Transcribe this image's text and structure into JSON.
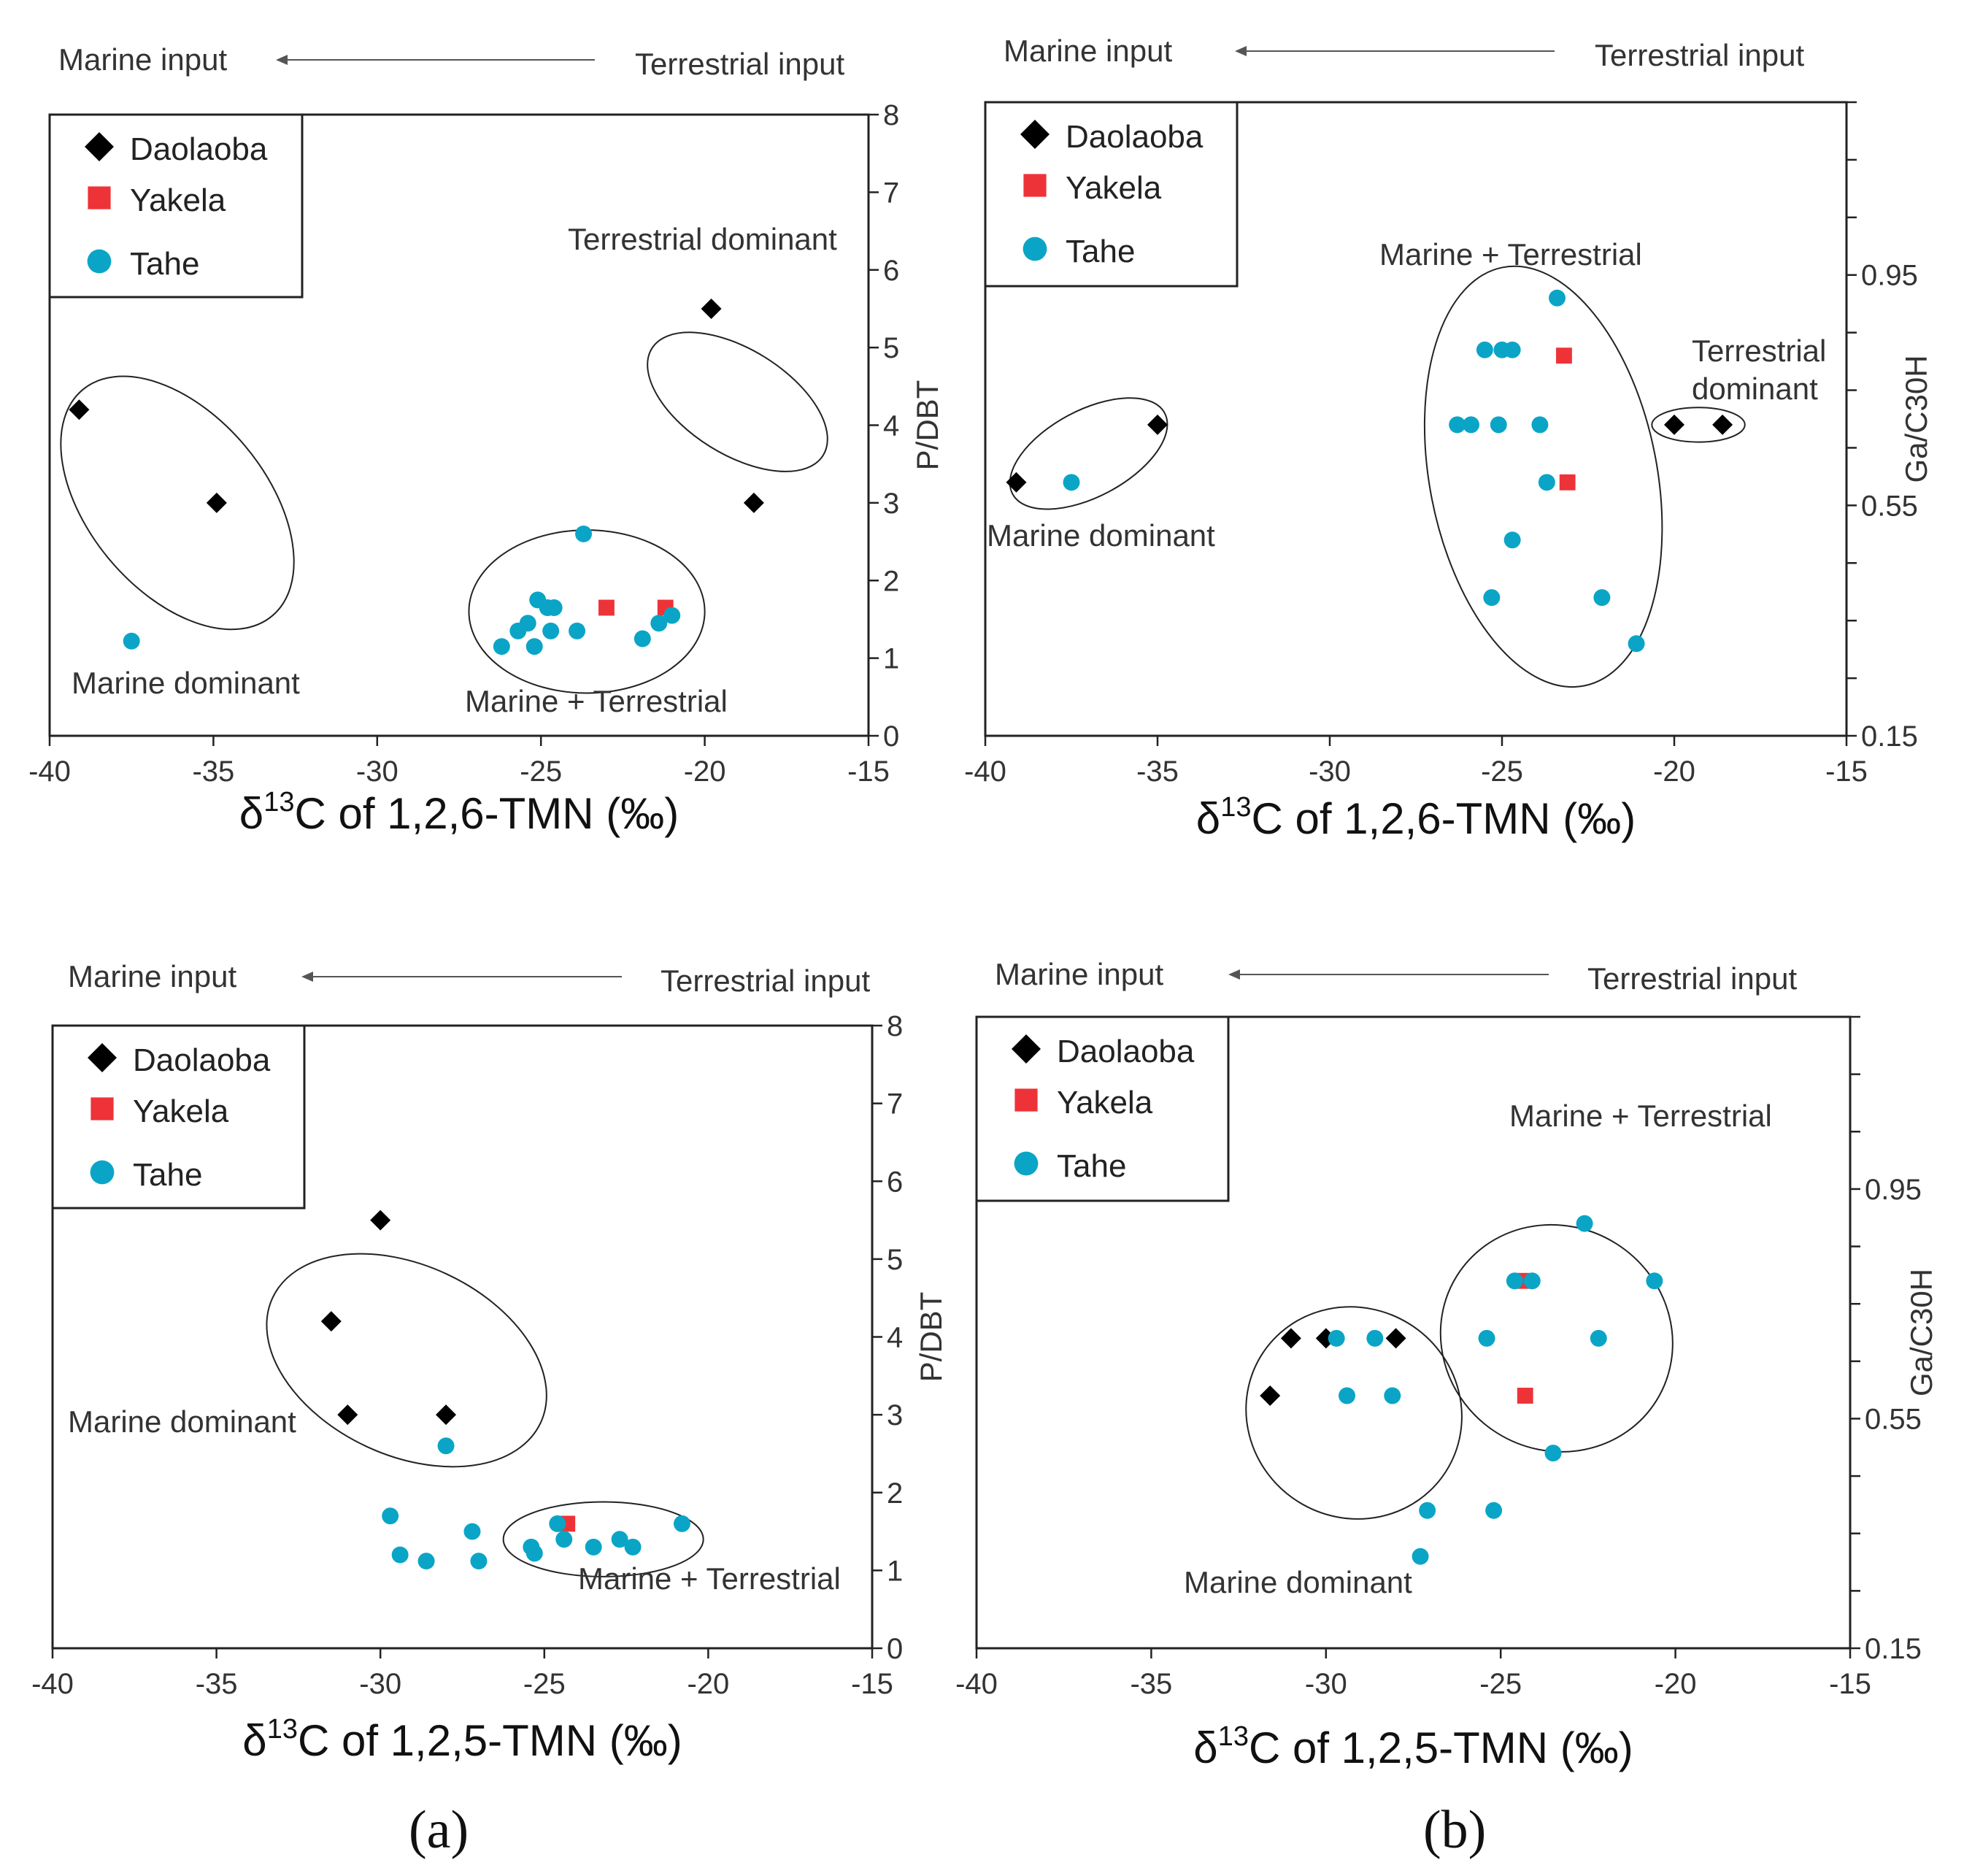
{
  "colors": {
    "daolaoba": "#000000",
    "yakela": "#ee3338",
    "tahe": "#0aa5c6",
    "axis": "#222222",
    "text": "#333333"
  },
  "captions": {
    "a": "(a)",
    "b": "(b)"
  },
  "chart_data": [
    {
      "id": "a-top",
      "type": "scatter",
      "xlabel": "δ13C of 1,2,6-TMN (‰)",
      "ylabel": "P/DBT",
      "xlim": [
        -40,
        -15
      ],
      "ylim": [
        0,
        8
      ],
      "xticks": [
        -40,
        -35,
        -30,
        -25,
        -20,
        -15
      ],
      "yticks": [
        0,
        1,
        2,
        3,
        4,
        5,
        6,
        7,
        8
      ],
      "ytick_labels": [
        "0",
        "1",
        "2",
        "3",
        "4",
        "5",
        "6",
        "7",
        "8"
      ],
      "arrow": {
        "left": "Marine input",
        "right": "Terrestrial input"
      },
      "legend": [
        "Daolaoba",
        "Yakela",
        "Tahe"
      ],
      "series": [
        {
          "name": "Daolaoba",
          "marker": "diamond",
          "points": [
            [
              -39.1,
              4.2
            ],
            [
              -34.9,
              3.0
            ],
            [
              -19.8,
              5.5
            ],
            [
              -18.5,
              3.0
            ]
          ]
        },
        {
          "name": "Yakela",
          "marker": "square",
          "points": [
            [
              -23.0,
              1.65
            ],
            [
              -21.2,
              1.65
            ]
          ]
        },
        {
          "name": "Tahe",
          "marker": "circle",
          "points": [
            [
              -37.5,
              1.22
            ],
            [
              -23.7,
              2.6
            ],
            [
              -26.2,
              1.15
            ],
            [
              -25.7,
              1.35
            ],
            [
              -25.4,
              1.45
            ],
            [
              -25.1,
              1.75
            ],
            [
              -24.8,
              1.65
            ],
            [
              -24.6,
              1.65
            ],
            [
              -25.2,
              1.15
            ],
            [
              -24.7,
              1.35
            ],
            [
              -23.9,
              1.35
            ],
            [
              -21.9,
              1.25
            ],
            [
              -21.4,
              1.45
            ],
            [
              -21.0,
              1.55
            ]
          ]
        }
      ],
      "groups": [
        {
          "label": "Marine dominant",
          "cx": -36.1,
          "cy": 3.0,
          "rx": 2.7,
          "ry": 1.9,
          "angle": -40
        },
        {
          "label": "Terrestrial dominant",
          "cx": -19.0,
          "cy": 4.3,
          "rx": 1.6,
          "ry": 1.3,
          "angle": -58
        },
        {
          "label": "Marine + Terrestrial",
          "cx": -23.6,
          "cy": 1.6,
          "rx": 3.6,
          "ry": 1.05,
          "angle": 0
        }
      ]
    },
    {
      "id": "b-top",
      "type": "scatter",
      "xlabel": "δ13C of 1,2,6-TMN (‰)",
      "ylabel": "Ga/C30H",
      "xlim": [
        -40,
        -15
      ],
      "ylim": [
        0.15,
        1.25
      ],
      "xticks": [
        -40,
        -35,
        -30,
        -25,
        -20,
        -15
      ],
      "yticks": [
        0.15,
        0.25,
        0.35,
        0.45,
        0.55,
        0.65,
        0.75,
        0.85,
        0.95,
        1.05,
        1.15,
        1.25
      ],
      "ytick_labels": [
        "0.15",
        "",
        "",
        "",
        "0.55",
        "",
        "",
        "",
        "0.95",
        "",
        "",
        ""
      ],
      "arrow": {
        "left": "Marine input",
        "right": "Terrestrial input"
      },
      "legend": [
        "Daolaoba",
        "Yakela",
        "Tahe"
      ],
      "series": [
        {
          "name": "Daolaoba",
          "marker": "diamond",
          "points": [
            [
              -39.1,
              0.59
            ],
            [
              -35.0,
              0.69
            ],
            [
              -20.0,
              0.69
            ],
            [
              -18.6,
              0.69
            ]
          ]
        },
        {
          "name": "Yakela",
          "marker": "square",
          "points": [
            [
              -23.2,
              0.81
            ],
            [
              -23.1,
              0.59
            ]
          ]
        },
        {
          "name": "Tahe",
          "marker": "circle",
          "points": [
            [
              -37.5,
              0.59
            ],
            [
              -23.4,
              0.91
            ],
            [
              -25.5,
              0.82
            ],
            [
              -25.0,
              0.82
            ],
            [
              -24.7,
              0.82
            ],
            [
              -26.3,
              0.69
            ],
            [
              -25.9,
              0.69
            ],
            [
              -25.1,
              0.69
            ],
            [
              -23.9,
              0.69
            ],
            [
              -23.7,
              0.59
            ],
            [
              -24.7,
              0.49
            ],
            [
              -25.3,
              0.39
            ],
            [
              -22.1,
              0.39
            ],
            [
              -21.1,
              0.31
            ]
          ]
        }
      ],
      "groups": [
        {
          "label": "Marine dominant",
          "cx": -37.0,
          "cy": 0.64,
          "rx": 2.5,
          "ry": 0.075,
          "angle": -28
        },
        {
          "label": "Marine + Terrestrial",
          "cx": -23.8,
          "cy": 0.6,
          "rx": 3.3,
          "ry": 0.37,
          "angle": -11
        },
        {
          "label": "Terrestrial dominant",
          "cx": -19.3,
          "cy": 0.69,
          "rx": 1.35,
          "ry": 0.03,
          "angle": 0
        }
      ]
    },
    {
      "id": "a-bottom",
      "type": "scatter",
      "xlabel": "δ13C of 1,2,5-TMN (‰)",
      "ylabel": "P/DBT",
      "xlim": [
        -40,
        -15
      ],
      "ylim": [
        0,
        8
      ],
      "xticks": [
        -40,
        -35,
        -30,
        -25,
        -20,
        -15
      ],
      "yticks": [
        0,
        1,
        2,
        3,
        4,
        5,
        6,
        7,
        8
      ],
      "ytick_labels": [
        "0",
        "1",
        "2",
        "3",
        "4",
        "5",
        "6",
        "7",
        "8"
      ],
      "arrow": {
        "left": "Marine input",
        "right": "Terrestrial input"
      },
      "legend": [
        "Daolaoba",
        "Yakela",
        "Tahe"
      ],
      "series": [
        {
          "name": "Daolaoba",
          "marker": "diamond",
          "points": [
            [
              -30.0,
              5.5
            ],
            [
              -31.5,
              4.2
            ],
            [
              -31.0,
              3.0
            ],
            [
              -28.0,
              3.0
            ]
          ]
        },
        {
          "name": "Yakela",
          "marker": "square",
          "points": [
            [
              -24.3,
              1.6
            ]
          ]
        },
        {
          "name": "Tahe",
          "marker": "circle",
          "points": [
            [
              -28.0,
              2.6
            ],
            [
              -29.7,
              1.7
            ],
            [
              -29.4,
              1.2
            ],
            [
              -28.6,
              1.12
            ],
            [
              -27.2,
              1.5
            ],
            [
              -27.0,
              1.12
            ],
            [
              -25.4,
              1.3
            ],
            [
              -25.3,
              1.22
            ],
            [
              -24.4,
              1.4
            ],
            [
              -24.6,
              1.6
            ],
            [
              -23.5,
              1.3
            ],
            [
              -22.7,
              1.4
            ],
            [
              -22.3,
              1.3
            ],
            [
              -20.8,
              1.6
            ]
          ]
        }
      ],
      "groups": [
        {
          "label": "Marine dominant",
          "cx": -29.2,
          "cy": 3.7,
          "rx": 2.9,
          "ry": 1.9,
          "angle": -65
        },
        {
          "label": "Marine + Terrestrial",
          "cx": -23.2,
          "cy": 1.4,
          "rx": 3.05,
          "ry": 0.48,
          "angle": 0
        }
      ]
    },
    {
      "id": "b-bottom",
      "type": "scatter",
      "xlabel": "δ13C of 1,2,5-TMN (‰)",
      "ylabel": "Ga/C30H",
      "xlim": [
        -40,
        -15
      ],
      "ylim": [
        0.15,
        1.25
      ],
      "xticks": [
        -40,
        -35,
        -30,
        -25,
        -20,
        -15
      ],
      "yticks": [
        0.15,
        0.25,
        0.35,
        0.45,
        0.55,
        0.65,
        0.75,
        0.85,
        0.95,
        1.05,
        1.15,
        1.25
      ],
      "ytick_labels": [
        "0.15",
        "",
        "",
        "",
        "0.55",
        "",
        "",
        "",
        "0.95",
        "",
        "",
        ""
      ],
      "arrow": {
        "left": "Marine input",
        "right": "Terrestrial input"
      },
      "legend": [
        "Daolaoba",
        "Yakela",
        "Tahe"
      ],
      "series": [
        {
          "name": "Daolaoba",
          "marker": "diamond",
          "points": [
            [
              -31.6,
              0.59
            ],
            [
              -31.0,
              0.69
            ],
            [
              -30.0,
              0.69
            ],
            [
              -28.0,
              0.69
            ]
          ]
        },
        {
          "name": "Yakela",
          "marker": "square",
          "points": [
            [
              -24.4,
              0.79
            ],
            [
              -24.3,
              0.59
            ]
          ]
        },
        {
          "name": "Tahe",
          "marker": "circle",
          "points": [
            [
              -29.7,
              0.69
            ],
            [
              -28.6,
              0.69
            ],
            [
              -29.4,
              0.59
            ],
            [
              -28.1,
              0.59
            ],
            [
              -27.1,
              0.39
            ],
            [
              -27.3,
              0.31
            ],
            [
              -25.4,
              0.69
            ],
            [
              -25.2,
              0.39
            ],
            [
              -24.6,
              0.79
            ],
            [
              -24.1,
              0.79
            ],
            [
              -23.5,
              0.49
            ],
            [
              -22.6,
              0.89
            ],
            [
              -22.2,
              0.69
            ],
            [
              -20.6,
              0.79
            ]
          ]
        }
      ],
      "groups": [
        {
          "label": "Marine dominant",
          "cx": -29.2,
          "cy": 0.56,
          "rx": 3.0,
          "ry": 0.19,
          "angle": -58
        },
        {
          "label": "Marine + Terrestrial",
          "cx": -23.4,
          "cy": 0.69,
          "rx": 3.2,
          "ry": 0.205,
          "angle": -58
        }
      ]
    }
  ]
}
